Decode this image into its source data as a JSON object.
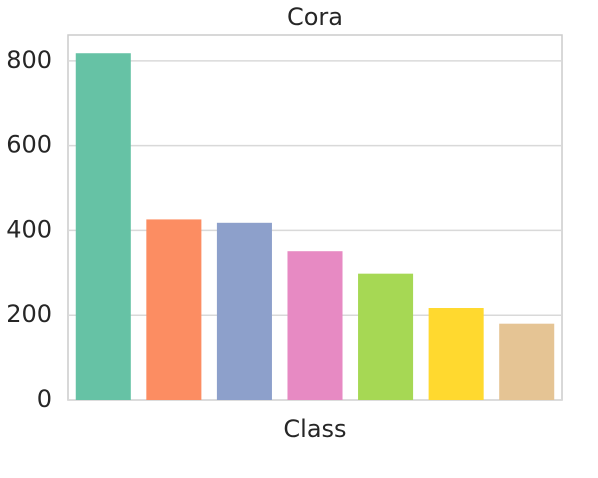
{
  "chart_data": {
    "type": "bar",
    "title": "Cora",
    "x_label": "Class",
    "categories": [
      null,
      null,
      null,
      null,
      null,
      null,
      null
    ],
    "values": [
      818,
      426,
      418,
      351,
      298,
      217,
      180
    ],
    "colors": [
      "#66c2a5",
      "#fc8d62",
      "#8da0cb",
      "#e78ac3",
      "#a6d854",
      "#ffd92f",
      "#e5c494"
    ],
    "ylim": [
      0,
      861
    ],
    "yticks": [
      0,
      200,
      400,
      600,
      800
    ],
    "grid": true
  }
}
